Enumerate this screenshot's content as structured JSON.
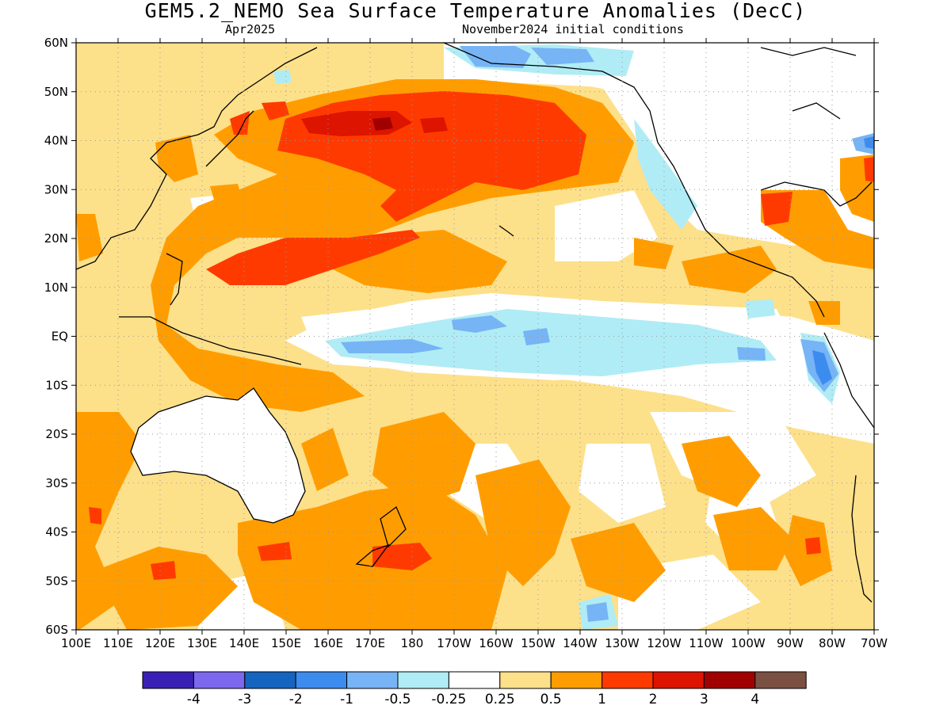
{
  "title": "GEM5.2_NEMO Sea Surface Temperature Anomalies (DecC)",
  "subtitle_left": "Apr2025",
  "subtitle_right": "November2024 initial conditions",
  "lat_labels": [
    "60N",
    "50N",
    "40N",
    "30N",
    "20N",
    "10N",
    "EQ",
    "10S",
    "20S",
    "30S",
    "40S",
    "50S",
    "60S"
  ],
  "lon_labels": [
    "100E",
    "110E",
    "120E",
    "130E",
    "140E",
    "150E",
    "160E",
    "170E",
    "180",
    "170W",
    "160W",
    "150W",
    "140W",
    "130W",
    "120W",
    "110W",
    "100W",
    "90W",
    "80W",
    "70W"
  ],
  "colorbar": {
    "colors": [
      "#3a1fb5",
      "#7b68ee",
      "#1565c0",
      "#3c8cf0",
      "#77b4f5",
      "#b0ecf5",
      "#ffffff",
      "#fde08a",
      "#ff9d00",
      "#ff3a00",
      "#dc1400",
      "#a00000",
      "#7a5042"
    ],
    "tick_labels": [
      "-4",
      "-3",
      "-2",
      "-1",
      "-0.5",
      "-0.25",
      "0.25",
      "0.5",
      "1",
      "2",
      "3",
      "4"
    ]
  }
}
